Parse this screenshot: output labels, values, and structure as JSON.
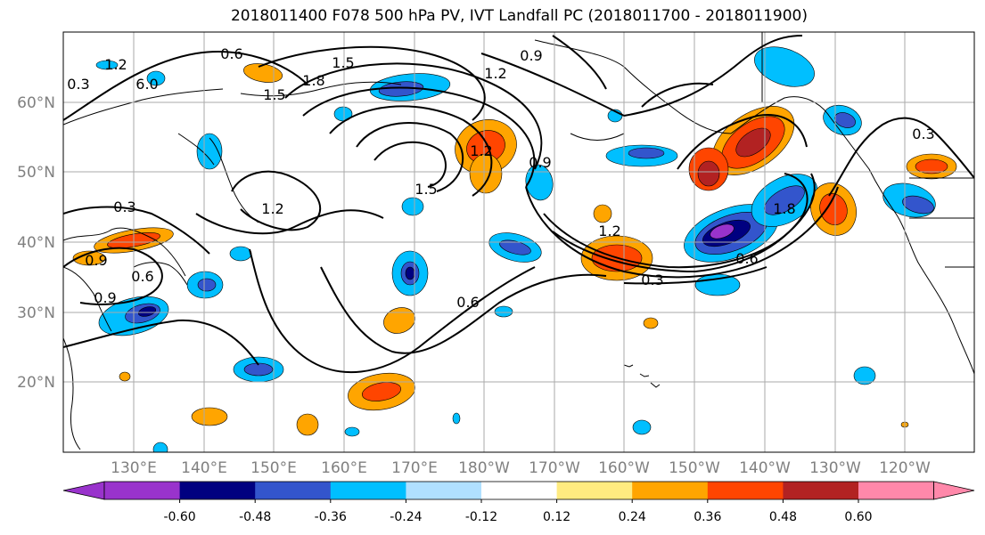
{
  "title": "2018011400 F078 500 hPa PV, IVT Landfall PC (2018011700 - 2018011900)",
  "lat_labels": [
    "60°N",
    "50°N",
    "40°N",
    "30°N",
    "20°N"
  ],
  "lon_labels": [
    "130°E",
    "140°E",
    "150°E",
    "160°E",
    "170°E",
    "180°W",
    "170°W",
    "160°W",
    "150°W",
    "140°W",
    "130°W",
    "120°W"
  ],
  "colorbar": {
    "colors": [
      "#9933cc",
      "#000080",
      "#3355cc",
      "#00bfff",
      "#b0e0ff",
      "#ffffff",
      "#ffeb80",
      "#ffa500",
      "#ff4500",
      "#b22222",
      "#ff88aa"
    ],
    "tick_labels": [
      "-0.60",
      "-0.48",
      "-0.36",
      "-0.24",
      "-0.12",
      "0.12",
      "0.24",
      "0.36",
      "0.48",
      "0.60"
    ]
  },
  "contour_labels": [
    "0.6",
    "1.5",
    "1.8",
    "1.5",
    "0.9",
    "1.2",
    "6.0",
    "1.2",
    "0.3",
    "1.2",
    "1.5",
    "0.9",
    "0.9",
    "1.2",
    "0.6",
    "0.3",
    "0.6",
    "1.8",
    "0.3",
    "0.9",
    "0.6",
    "0.3",
    "1.2"
  ]
}
